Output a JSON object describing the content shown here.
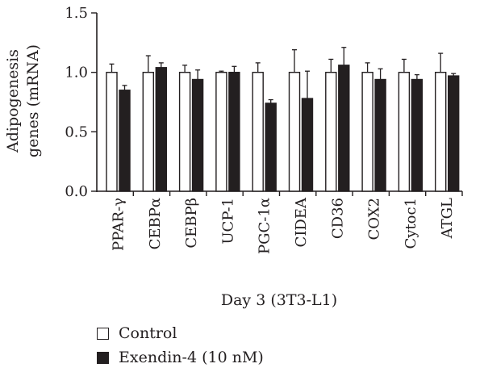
{
  "chart_data": {
    "type": "bar",
    "xlabel": "Day 3 (3T3-L1)",
    "ylabel_lines": [
      "Adipogenesis",
      "genes (mRNA)"
    ],
    "ylim": [
      0,
      1.5
    ],
    "yticks": [
      "0.0",
      "0.5",
      "1.0",
      "1.5"
    ],
    "ytick_values": [
      0,
      0.5,
      1.0,
      1.5
    ],
    "categories": [
      "PPAR-γ",
      "CEBPα",
      "CEBPβ",
      "UCP-1",
      "PGC-1α",
      "CIDEA",
      "CD36",
      "COX2",
      "Cytoc1",
      "ATGL"
    ],
    "series": [
      {
        "name": "Control",
        "color": "#ffffff",
        "values": [
          1.0,
          1.0,
          1.0,
          1.0,
          1.0,
          1.0,
          1.0,
          1.0,
          1.0,
          1.0
        ],
        "errors": [
          0.07,
          0.14,
          0.06,
          0.01,
          0.08,
          0.19,
          0.11,
          0.08,
          0.11,
          0.16
        ]
      },
      {
        "name": "Exendin-4 (10 nM)",
        "color": "#231f20",
        "values": [
          0.85,
          1.04,
          0.94,
          1.0,
          0.74,
          0.78,
          1.06,
          0.94,
          0.94,
          0.97
        ],
        "errors": [
          0.04,
          0.04,
          0.08,
          0.05,
          0.03,
          0.23,
          0.15,
          0.09,
          0.04,
          0.02
        ]
      }
    ],
    "grid": false,
    "legend_position": "bottom-left"
  }
}
